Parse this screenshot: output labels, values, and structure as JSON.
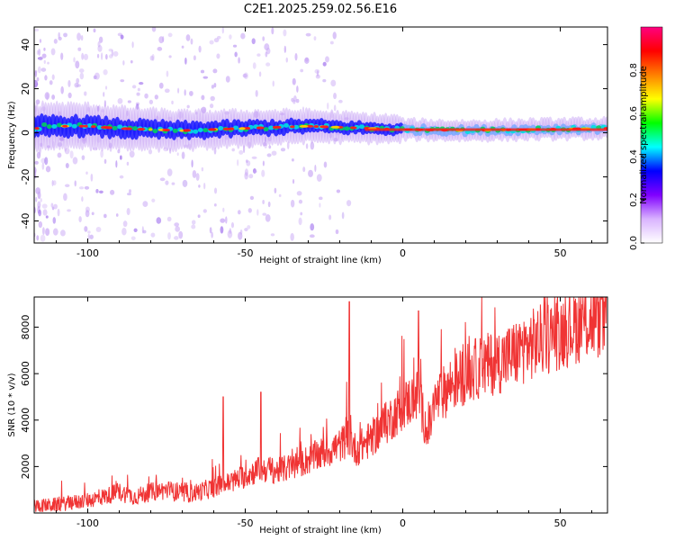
{
  "title": "C2E1.2025.259.02.56.E16",
  "colors": {
    "snr_line": "#f03434",
    "band_core": "#ff1a1a",
    "band_mid": "#00d060",
    "band_low": "#1a1aff",
    "band_fringe": "#c9a8f5"
  },
  "chart_data": [
    {
      "type": "heatmap",
      "xlabel": "Height of straight line (km)",
      "ylabel": "Frequency (Hz)",
      "xlim": [
        -117,
        65
      ],
      "ylim": [
        -50,
        48
      ],
      "xticks": [
        -100,
        -50,
        0,
        50
      ],
      "yticks": [
        -40,
        -20,
        0,
        20,
        40
      ],
      "grid": false,
      "band_center_hz": [
        {
          "x": -115,
          "y": 3
        },
        {
          "x": -100,
          "y": 3
        },
        {
          "x": -90,
          "y": 2
        },
        {
          "x": -70,
          "y": 1
        },
        {
          "x": -50,
          "y": 2
        },
        {
          "x": -30,
          "y": 3
        },
        {
          "x": -10,
          "y": 2
        },
        {
          "x": 0,
          "y": 1.5
        },
        {
          "x": 20,
          "y": 1
        },
        {
          "x": 40,
          "y": 1.5
        },
        {
          "x": 65,
          "y": 2
        }
      ],
      "colorbar": {
        "label": "Normalized spectral amplitude",
        "range": [
          0,
          1
        ],
        "ticks": [
          "0.0",
          "0.2",
          "0.4",
          "0.6",
          "0.8"
        ],
        "stops": [
          "#ffffff",
          "#d9b3ff",
          "#8000ff",
          "#0000ff",
          "#00ffff",
          "#00ff00",
          "#ffff00",
          "#ff8000",
          "#ff0000",
          "#ff0080"
        ]
      }
    },
    {
      "type": "line",
      "xlabel": "Height of straight line (km)",
      "ylabel": "SNR (10 * v/v)",
      "xlim": [
        -117,
        65
      ],
      "ylim": [
        0,
        9300
      ],
      "xticks": [
        -100,
        -50,
        0,
        50
      ],
      "yticks": [
        2000,
        4000,
        6000,
        8000
      ],
      "grid": false,
      "series": [
        {
          "x": [
            -117,
            -110,
            -105,
            -100,
            -95,
            -90,
            -85,
            -80,
            -75,
            -70,
            -65,
            -60,
            -55,
            -50,
            -45,
            -40,
            -35,
            -30,
            -25,
            -20,
            -17,
            -15,
            -10,
            -5,
            0,
            5,
            8,
            10,
            15,
            20,
            25,
            30,
            35,
            40,
            45,
            50,
            55,
            60,
            65
          ],
          "y": [
            300,
            350,
            450,
            550,
            700,
            900,
            700,
            900,
            1000,
            800,
            900,
            1100,
            1300,
            1600,
            1900,
            1800,
            2000,
            2300,
            2600,
            2900,
            3300,
            2700,
            3200,
            3900,
            4600,
            5100,
            3300,
            4700,
            5500,
            6000,
            6300,
            6500,
            6800,
            7200,
            7500,
            7800,
            8100,
            8300,
            8400
          ],
          "peaks": [
            {
              "x": -17,
              "y": 9100
            },
            {
              "x": 5,
              "y": 8700
            },
            {
              "x": -45,
              "y": 5200
            },
            {
              "x": -57,
              "y": 5000
            },
            {
              "x": 63,
              "y": 9200
            }
          ]
        }
      ]
    }
  ]
}
